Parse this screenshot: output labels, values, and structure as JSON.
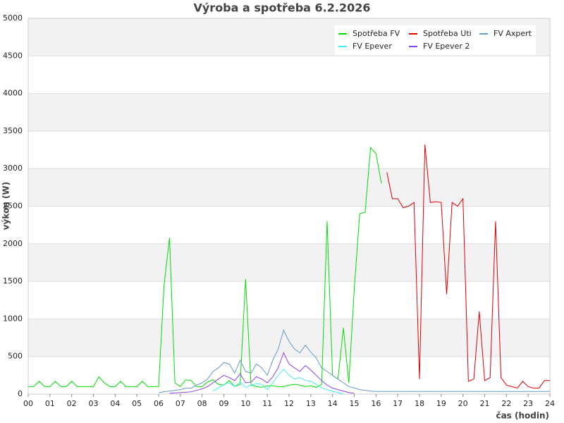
{
  "chart_data": {
    "type": "line",
    "title": "Výroba a spotřeba 6.2.2026",
    "x_label": "čas (hodin)",
    "y_label": "výkon (W)",
    "xlim": [
      0,
      24
    ],
    "ylim": [
      0,
      5000
    ],
    "xticks": [
      {
        "value": 0,
        "label": "00"
      },
      {
        "value": 1,
        "label": "01"
      },
      {
        "value": 2,
        "label": "02"
      },
      {
        "value": 3,
        "label": "03"
      },
      {
        "value": 4,
        "label": "04"
      },
      {
        "value": 5,
        "label": "05"
      },
      {
        "value": 6,
        "label": "06"
      },
      {
        "value": 7,
        "label": "07"
      },
      {
        "value": 8,
        "label": "08"
      },
      {
        "value": 9,
        "label": "09"
      },
      {
        "value": 10,
        "label": "10"
      },
      {
        "value": 11,
        "label": "11"
      },
      {
        "value": 12,
        "label": "12"
      },
      {
        "value": 13,
        "label": "13"
      },
      {
        "value": 14,
        "label": "14"
      },
      {
        "value": 15,
        "label": "15"
      },
      {
        "value": 16,
        "label": "16"
      },
      {
        "value": 17,
        "label": "17"
      },
      {
        "value": 18,
        "label": "18"
      },
      {
        "value": 19,
        "label": "19"
      },
      {
        "value": 20,
        "label": "20"
      },
      {
        "value": 21,
        "label": "21"
      },
      {
        "value": 22,
        "label": "22"
      },
      {
        "value": 23,
        "label": "23"
      },
      {
        "value": 24,
        "label": "24"
      }
    ],
    "yticks": [
      0,
      500,
      1000,
      1500,
      2000,
      2500,
      3000,
      3500,
      4000,
      4500,
      5000
    ],
    "grid": true,
    "legend": "upper right",
    "x": [
      0,
      0.25,
      0.5,
      0.75,
      1,
      1.25,
      1.5,
      1.75,
      2,
      2.25,
      2.5,
      2.75,
      3,
      3.25,
      3.5,
      3.75,
      4,
      4.25,
      4.5,
      4.75,
      5,
      5.25,
      5.5,
      5.75,
      6,
      6.25,
      6.5,
      6.75,
      7,
      7.25,
      7.5,
      7.75,
      8,
      8.25,
      8.5,
      8.75,
      9,
      9.25,
      9.5,
      9.75,
      10,
      10.25,
      10.5,
      10.75,
      11,
      11.25,
      11.5,
      11.75,
      12,
      12.25,
      12.5,
      12.75,
      13,
      13.25,
      13.5,
      13.75,
      14,
      14.25,
      14.5,
      14.75,
      15,
      15.25,
      15.5,
      15.75,
      16,
      16.25,
      16.5,
      16.75,
      17,
      17.25,
      17.5,
      17.75,
      18,
      18.25,
      18.5,
      18.75,
      19,
      19.25,
      19.5,
      19.75,
      20,
      20.25,
      20.5,
      20.75,
      21,
      21.25,
      21.5,
      21.75,
      22,
      22.25,
      22.5,
      22.75,
      23,
      23.25,
      23.5,
      23.75,
      24
    ],
    "series": [
      {
        "name": "Spotřeba FV",
        "color": "#00dd00",
        "values": [
          100,
          100,
          170,
          100,
          100,
          170,
          100,
          100,
          170,
          100,
          100,
          100,
          100,
          230,
          150,
          100,
          100,
          170,
          100,
          100,
          100,
          170,
          100,
          100,
          100,
          1450,
          2080,
          150,
          100,
          190,
          180,
          100,
          100,
          160,
          190,
          130,
          120,
          180,
          100,
          130,
          1530,
          120,
          100,
          90,
          110,
          110,
          100,
          100,
          120,
          130,
          120,
          100,
          110,
          90,
          130,
          2300,
          250,
          200,
          880,
          150,
          1400,
          2400,
          2420,
          3280,
          3200,
          2800,
          null,
          null,
          null,
          null,
          null,
          null,
          null,
          null,
          null,
          null,
          null,
          null,
          null,
          null,
          null,
          null,
          null,
          null,
          null,
          null,
          null,
          null,
          null,
          null,
          null,
          null,
          null,
          null,
          null,
          null,
          null
        ]
      },
      {
        "name": "Spotřeba Uti",
        "color": "#dd0000",
        "values": [
          null,
          null,
          null,
          null,
          null,
          null,
          null,
          null,
          null,
          null,
          null,
          null,
          null,
          null,
          null,
          null,
          null,
          null,
          null,
          null,
          null,
          null,
          null,
          null,
          null,
          null,
          null,
          null,
          null,
          null,
          null,
          null,
          null,
          null,
          null,
          null,
          null,
          null,
          null,
          null,
          null,
          null,
          null,
          null,
          null,
          null,
          null,
          null,
          null,
          null,
          null,
          null,
          null,
          null,
          null,
          null,
          null,
          null,
          null,
          null,
          null,
          null,
          null,
          null,
          null,
          null,
          2950,
          2600,
          2600,
          2480,
          2500,
          2550,
          200,
          3320,
          2550,
          2560,
          2550,
          1330,
          2550,
          2500,
          2600,
          170,
          200,
          1100,
          180,
          220,
          2300,
          220,
          120,
          100,
          80,
          170,
          100,
          80,
          80,
          180,
          180
        ]
      },
      {
        "name": "FV Axpert",
        "color": "#6699cc",
        "values": [
          null,
          null,
          null,
          null,
          null,
          null,
          null,
          null,
          null,
          null,
          null,
          null,
          null,
          null,
          null,
          null,
          null,
          null,
          null,
          null,
          null,
          null,
          null,
          null,
          20,
          30,
          40,
          50,
          60,
          80,
          80,
          120,
          150,
          200,
          300,
          350,
          420,
          400,
          280,
          450,
          300,
          280,
          400,
          350,
          250,
          450,
          600,
          850,
          700,
          600,
          550,
          650,
          560,
          480,
          350,
          300,
          250,
          200,
          150,
          100,
          80,
          60,
          50,
          40,
          35,
          35,
          35,
          35,
          35,
          35,
          35,
          35,
          35,
          35,
          35,
          35,
          35,
          35,
          35,
          35,
          35,
          35,
          35,
          35,
          35,
          35,
          35,
          35,
          35,
          35,
          35,
          35,
          35,
          35,
          35,
          35,
          35
        ]
      },
      {
        "name": "FV Epever",
        "color": "#44eeee",
        "values": [
          null,
          null,
          null,
          null,
          null,
          null,
          null,
          null,
          null,
          null,
          null,
          null,
          null,
          null,
          null,
          null,
          null,
          null,
          null,
          null,
          null,
          null,
          null,
          null,
          null,
          null,
          null,
          null,
          null,
          null,
          null,
          null,
          null,
          null,
          40,
          80,
          130,
          150,
          100,
          160,
          90,
          120,
          140,
          130,
          60,
          150,
          250,
          330,
          250,
          200,
          220,
          180,
          170,
          130,
          80,
          60,
          40,
          20,
          0,
          null,
          null,
          null,
          null,
          null,
          null,
          null,
          null,
          null,
          null,
          null,
          null,
          null,
          null,
          null,
          null,
          null,
          null,
          null,
          null,
          null,
          null,
          null,
          null,
          null,
          null,
          null,
          null,
          null,
          null,
          null,
          null,
          null,
          null,
          null,
          null,
          null,
          null
        ]
      },
      {
        "name": "FV Epever 2",
        "color": "#8844ee",
        "values": [
          null,
          null,
          null,
          null,
          null,
          null,
          null,
          null,
          null,
          null,
          null,
          null,
          null,
          null,
          null,
          null,
          null,
          null,
          null,
          null,
          null,
          null,
          null,
          null,
          null,
          null,
          10,
          15,
          20,
          25,
          30,
          50,
          70,
          100,
          150,
          200,
          250,
          220,
          180,
          270,
          150,
          160,
          230,
          200,
          150,
          230,
          350,
          550,
          400,
          350,
          300,
          380,
          320,
          250,
          180,
          120,
          80,
          60,
          40,
          20,
          10,
          null,
          null,
          null,
          null,
          null,
          null,
          null,
          null,
          null,
          null,
          null,
          null,
          null,
          null,
          null,
          null,
          null,
          null,
          null,
          null,
          null,
          null,
          null,
          null,
          null,
          null,
          null,
          null,
          null,
          null,
          null,
          null,
          null,
          null,
          null,
          null
        ]
      }
    ]
  }
}
